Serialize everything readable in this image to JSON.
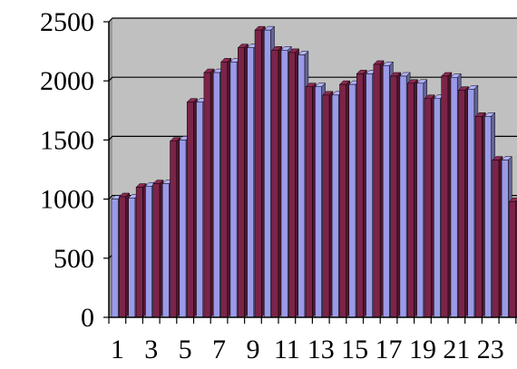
{
  "chart_data": {
    "type": "bar",
    "title": "",
    "xlabel": "",
    "ylabel": "",
    "ylim": [
      0,
      2500
    ],
    "y_ticks": [
      0,
      500,
      1000,
      1500,
      2000,
      2500
    ],
    "y_tick_labels": [
      "0",
      "500",
      "1000",
      "1500",
      "2000",
      "2500"
    ],
    "categories": [
      "1",
      "2",
      "3",
      "4",
      "5",
      "6",
      "7",
      "8",
      "9",
      "10",
      "11",
      "12",
      "13",
      "14",
      "15",
      "16",
      "17",
      "18",
      "19",
      "20",
      "21",
      "22",
      "23",
      "24"
    ],
    "x_tick_labels": [
      {
        "index": 0,
        "text": "1"
      },
      {
        "index": 2,
        "text": "3"
      },
      {
        "index": 4,
        "text": "5"
      },
      {
        "index": 6,
        "text": "7"
      },
      {
        "index": 8,
        "text": "9"
      },
      {
        "index": 10,
        "text": "11"
      },
      {
        "index": 12,
        "text": "13"
      },
      {
        "index": 14,
        "text": "15"
      },
      {
        "index": 16,
        "text": "17"
      },
      {
        "index": 18,
        "text": "19"
      },
      {
        "index": 20,
        "text": "21"
      },
      {
        "index": 22,
        "text": "23"
      }
    ],
    "series": [
      {
        "color": "#9a9ae8",
        "values": [
          1000,
          1010,
          1110,
          1130,
          1500,
          1820,
          2070,
          2160,
          2280,
          2430,
          2260,
          2220,
          1950,
          1880,
          1970,
          2060,
          2130,
          2040,
          1980,
          1850,
          2030,
          1930,
          1700,
          1330
        ]
      },
      {
        "color": "#7b2448",
        "values": [
          1020,
          1100,
          1130,
          1490,
          1820,
          2070,
          2160,
          2280,
          2430,
          2260,
          2240,
          1950,
          1880,
          1970,
          2060,
          2140,
          2040,
          1980,
          1850,
          2040,
          1920,
          1700,
          1330,
          980
        ]
      }
    ],
    "grid": true,
    "legend": "none",
    "plot_background": "#c0c0c0"
  }
}
